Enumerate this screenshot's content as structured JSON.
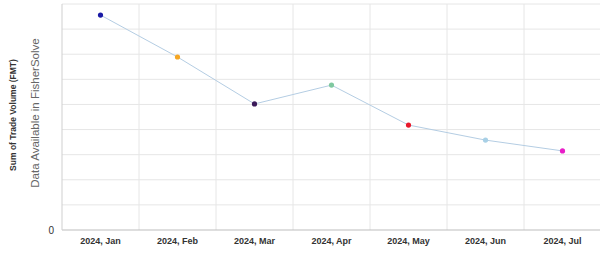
{
  "chart_data": {
    "type": "line",
    "y_label": "Sum of Trade Volume (FMT)",
    "annotation": "Data Available in FisherSolve",
    "categories": [
      "2024, Jan",
      "2024, Feb",
      "2024, Mar",
      "2024, Apr",
      "2024, May",
      "2024, Jun",
      "2024, Jul"
    ],
    "values": [
      8.56,
      6.89,
      5.02,
      5.77,
      4.18,
      3.58,
      3.15
    ],
    "color": "#b4cde3",
    "colors": [
      "#1a1aa6",
      "#f5a623",
      "#3b1a5a",
      "#7fc8a0",
      "#e8192c",
      "#a8d0e6",
      "#e81ec8"
    ],
    "marker": "circle",
    "ylim": [
      0,
      9
    ],
    "yticks": [
      0
    ],
    "grid": true
  }
}
